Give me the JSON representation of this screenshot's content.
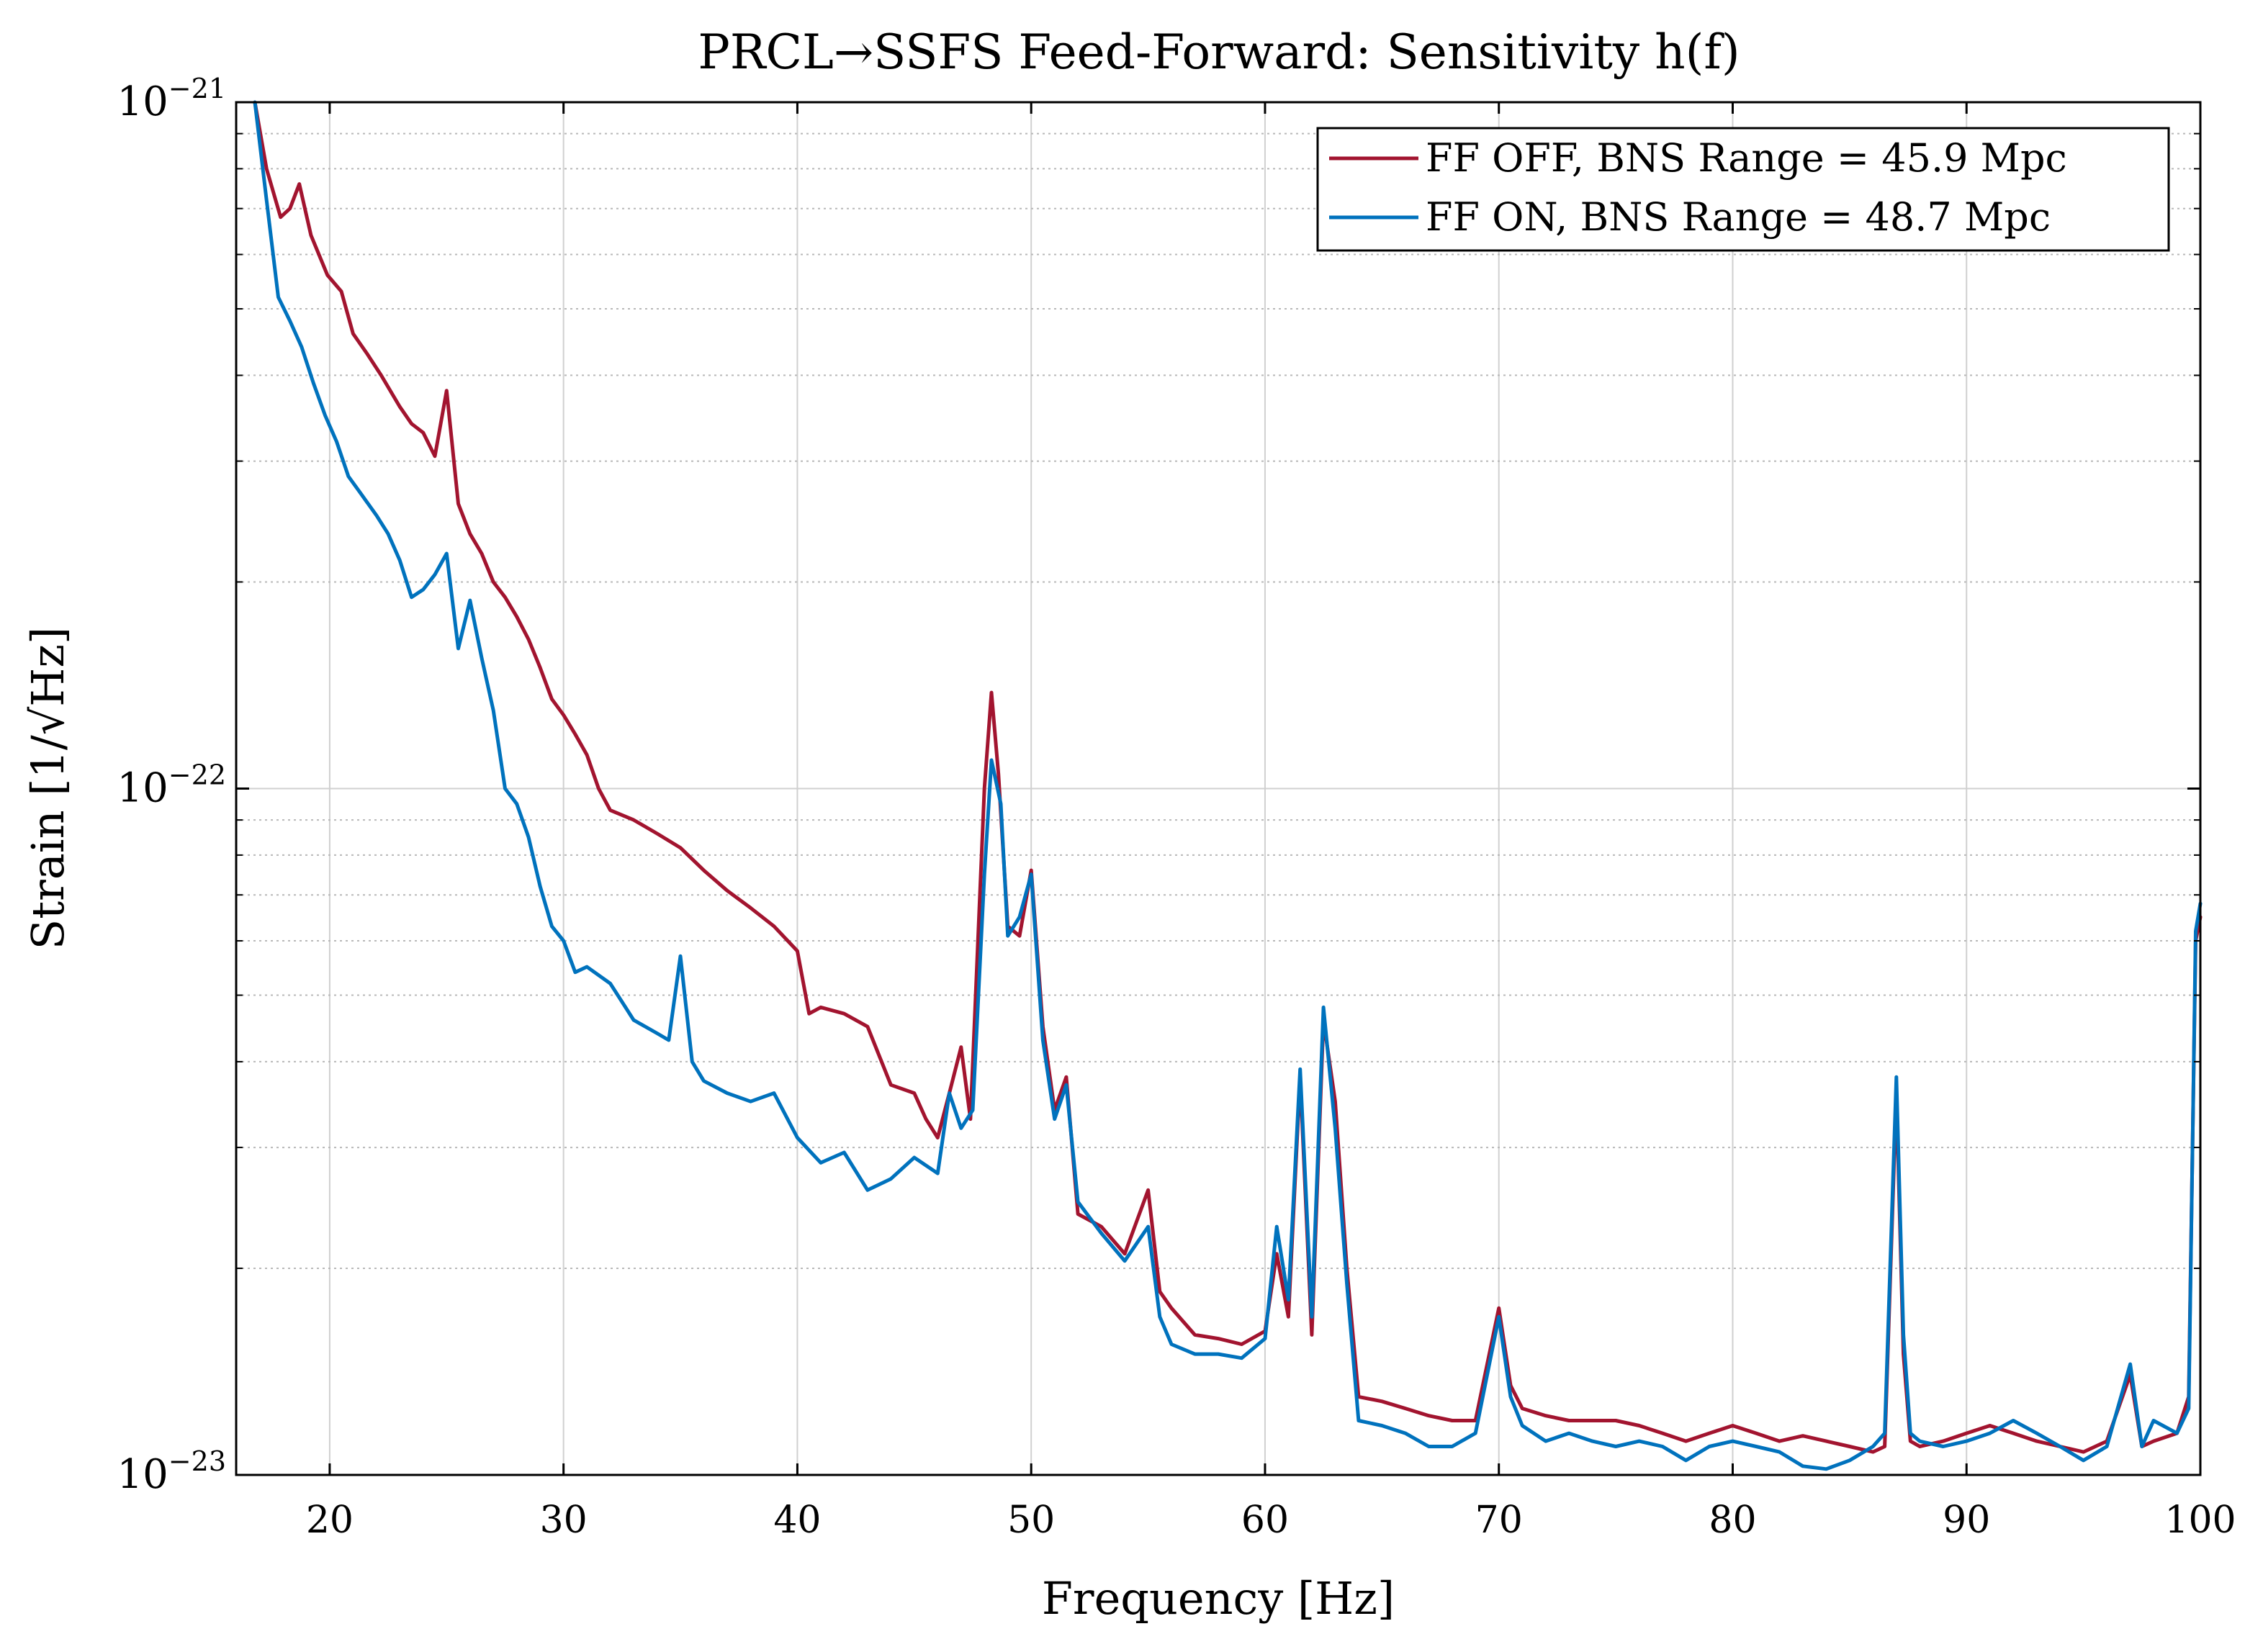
{
  "chart_data": {
    "type": "line",
    "title": "PRCL→SSFS Feed-Forward: Sensitivity h(f)",
    "xlabel": "Frequency [Hz]",
    "ylabel": "Strain [1/√Hz]",
    "xlim": [
      16,
      100
    ],
    "ylim": [
      1e-23,
      1e-21
    ],
    "yscale": "log",
    "grid": true,
    "legend_position": "top-right",
    "x_ticks": [
      20,
      30,
      40,
      50,
      60,
      70,
      80,
      90,
      100
    ],
    "x_tick_labels": [
      "20",
      "30",
      "40",
      "50",
      "60",
      "70",
      "80",
      "90",
      "100"
    ],
    "y_ticks": [
      1e-23,
      1e-22,
      1e-21
    ],
    "y_tick_labels": [
      {
        "base": "10",
        "exp": "−23"
      },
      {
        "base": "10",
        "exp": "−22"
      },
      {
        "base": "10",
        "exp": "−21"
      }
    ],
    "series": [
      {
        "name": "FF OFF, BNS Range = 45.9 Mpc",
        "color": "#a2142f",
        "points": [
          [
            16.8,
            1e-21
          ],
          [
            17.3,
            8e-22
          ],
          [
            17.9,
            6.8e-22
          ],
          [
            18.3,
            7e-22
          ],
          [
            18.7,
            7.6e-22
          ],
          [
            19.2,
            6.4e-22
          ],
          [
            19.9,
            5.6e-22
          ],
          [
            20.5,
            5.3e-22
          ],
          [
            21.0,
            4.6e-22
          ],
          [
            21.6,
            4.3e-22
          ],
          [
            22.2,
            4e-22
          ],
          [
            23.0,
            3.6e-22
          ],
          [
            23.5,
            3.4e-22
          ],
          [
            24.0,
            3.3e-22
          ],
          [
            24.5,
            3.05e-22
          ],
          [
            25.0,
            3.8e-22
          ],
          [
            25.5,
            2.6e-22
          ],
          [
            26.0,
            2.35e-22
          ],
          [
            26.5,
            2.2e-22
          ],
          [
            27.0,
            2e-22
          ],
          [
            27.5,
            1.9e-22
          ],
          [
            28.0,
            1.78e-22
          ],
          [
            28.5,
            1.65e-22
          ],
          [
            29.0,
            1.5e-22
          ],
          [
            29.5,
            1.35e-22
          ],
          [
            30.0,
            1.28e-22
          ],
          [
            30.5,
            1.2e-22
          ],
          [
            31.0,
            1.12e-22
          ],
          [
            31.5,
            1e-22
          ],
          [
            32.0,
            9.3e-23
          ],
          [
            33.0,
            9e-23
          ],
          [
            34.0,
            8.6e-23
          ],
          [
            35.0,
            8.2e-23
          ],
          [
            36.0,
            7.6e-23
          ],
          [
            37.0,
            7.1e-23
          ],
          [
            38.0,
            6.7e-23
          ],
          [
            39.0,
            6.3e-23
          ],
          [
            40.0,
            5.8e-23
          ],
          [
            40.5,
            4.7e-23
          ],
          [
            41.0,
            4.8e-23
          ],
          [
            42.0,
            4.7e-23
          ],
          [
            43.0,
            4.5e-23
          ],
          [
            44.0,
            3.7e-23
          ],
          [
            45.0,
            3.6e-23
          ],
          [
            45.5,
            3.3e-23
          ],
          [
            46.0,
            3.1e-23
          ],
          [
            46.5,
            3.6e-23
          ],
          [
            47.0,
            4.2e-23
          ],
          [
            47.4,
            3.3e-23
          ],
          [
            48.0,
            1e-22
          ],
          [
            48.3,
            1.38e-22
          ],
          [
            48.6,
            1.05e-22
          ],
          [
            49.0,
            6.3e-23
          ],
          [
            49.5,
            6.1e-23
          ],
          [
            50.0,
            7.6e-23
          ],
          [
            50.5,
            4.5e-23
          ],
          [
            51.0,
            3.4e-23
          ],
          [
            51.5,
            3.8e-23
          ],
          [
            52.0,
            2.4e-23
          ],
          [
            53.0,
            2.3e-23
          ],
          [
            54.0,
            2.1e-23
          ],
          [
            55.0,
            2.6e-23
          ],
          [
            55.5,
            1.85e-23
          ],
          [
            56.0,
            1.75e-23
          ],
          [
            57.0,
            1.6e-23
          ],
          [
            58.0,
            1.58e-23
          ],
          [
            59.0,
            1.55e-23
          ],
          [
            60.0,
            1.62e-23
          ],
          [
            60.5,
            2.1e-23
          ],
          [
            61.0,
            1.7e-23
          ],
          [
            61.5,
            3.8e-23
          ],
          [
            62.0,
            1.6e-23
          ],
          [
            62.5,
            4.6e-23
          ],
          [
            63.0,
            3.5e-23
          ],
          [
            63.5,
            2e-23
          ],
          [
            64.0,
            1.3e-23
          ],
          [
            65.0,
            1.28e-23
          ],
          [
            66.0,
            1.25e-23
          ],
          [
            67.0,
            1.22e-23
          ],
          [
            68.0,
            1.2e-23
          ],
          [
            69.0,
            1.2e-23
          ],
          [
            70.0,
            1.75e-23
          ],
          [
            70.5,
            1.35e-23
          ],
          [
            71.0,
            1.25e-23
          ],
          [
            72.0,
            1.22e-23
          ],
          [
            73.0,
            1.2e-23
          ],
          [
            74.0,
            1.2e-23
          ],
          [
            75.0,
            1.2e-23
          ],
          [
            76.0,
            1.18e-23
          ],
          [
            77.0,
            1.15e-23
          ],
          [
            78.0,
            1.12e-23
          ],
          [
            79.0,
            1.15e-23
          ],
          [
            80.0,
            1.18e-23
          ],
          [
            81.0,
            1.15e-23
          ],
          [
            82.0,
            1.12e-23
          ],
          [
            83.0,
            1.14e-23
          ],
          [
            84.0,
            1.12e-23
          ],
          [
            85.0,
            1.1e-23
          ],
          [
            86.0,
            1.08e-23
          ],
          [
            86.5,
            1.1e-23
          ],
          [
            87.0,
            3.6e-23
          ],
          [
            87.3,
            1.5e-23
          ],
          [
            87.6,
            1.12e-23
          ],
          [
            88.0,
            1.1e-23
          ],
          [
            89.0,
            1.12e-23
          ],
          [
            90.0,
            1.15e-23
          ],
          [
            91.0,
            1.18e-23
          ],
          [
            92.0,
            1.15e-23
          ],
          [
            93.0,
            1.12e-23
          ],
          [
            94.0,
            1.1e-23
          ],
          [
            95.0,
            1.08e-23
          ],
          [
            96.0,
            1.12e-23
          ],
          [
            97.0,
            1.4e-23
          ],
          [
            97.5,
            1.1e-23
          ],
          [
            98.0,
            1.12e-23
          ],
          [
            99.0,
            1.15e-23
          ],
          [
            99.5,
            1.3e-23
          ],
          [
            99.8,
            6e-23
          ],
          [
            100.0,
            6.5e-23
          ]
        ]
      },
      {
        "name": "FF ON, BNS Range = 48.7 Mpc",
        "color": "#0072bd",
        "points": [
          [
            16.8,
            1e-21
          ],
          [
            17.3,
            7.2e-22
          ],
          [
            17.8,
            5.2e-22
          ],
          [
            18.3,
            4.8e-22
          ],
          [
            18.8,
            4.4e-22
          ],
          [
            19.3,
            3.9e-22
          ],
          [
            19.8,
            3.5e-22
          ],
          [
            20.3,
            3.2e-22
          ],
          [
            20.8,
            2.85e-22
          ],
          [
            21.3,
            2.7e-22
          ],
          [
            22.0,
            2.5e-22
          ],
          [
            22.5,
            2.35e-22
          ],
          [
            23.0,
            2.15e-22
          ],
          [
            23.5,
            1.9e-22
          ],
          [
            24.0,
            1.95e-22
          ],
          [
            24.5,
            2.05e-22
          ],
          [
            25.0,
            2.2e-22
          ],
          [
            25.5,
            1.6e-22
          ],
          [
            26.0,
            1.88e-22
          ],
          [
            26.5,
            1.55e-22
          ],
          [
            27.0,
            1.3e-22
          ],
          [
            27.5,
            1e-22
          ],
          [
            28.0,
            9.5e-23
          ],
          [
            28.5,
            8.5e-23
          ],
          [
            29.0,
            7.2e-23
          ],
          [
            29.5,
            6.3e-23
          ],
          [
            30.0,
            6e-23
          ],
          [
            30.5,
            5.4e-23
          ],
          [
            31.0,
            5.5e-23
          ],
          [
            32.0,
            5.2e-23
          ],
          [
            33.0,
            4.6e-23
          ],
          [
            34.0,
            4.4e-23
          ],
          [
            34.5,
            4.3e-23
          ],
          [
            35.0,
            5.7e-23
          ],
          [
            35.5,
            4e-23
          ],
          [
            36.0,
            3.75e-23
          ],
          [
            37.0,
            3.6e-23
          ],
          [
            38.0,
            3.5e-23
          ],
          [
            39.0,
            3.6e-23
          ],
          [
            40.0,
            3.1e-23
          ],
          [
            41.0,
            2.85e-23
          ],
          [
            42.0,
            2.95e-23
          ],
          [
            43.0,
            2.6e-23
          ],
          [
            44.0,
            2.7e-23
          ],
          [
            45.0,
            2.9e-23
          ],
          [
            46.0,
            2.75e-23
          ],
          [
            46.5,
            3.6e-23
          ],
          [
            47.0,
            3.2e-23
          ],
          [
            47.5,
            3.4e-23
          ],
          [
            48.0,
            7.5e-23
          ],
          [
            48.3,
            1.1e-22
          ],
          [
            48.7,
            9.5e-23
          ],
          [
            49.0,
            6.1e-23
          ],
          [
            49.5,
            6.5e-23
          ],
          [
            50.0,
            7.5e-23
          ],
          [
            50.5,
            4.3e-23
          ],
          [
            51.0,
            3.3e-23
          ],
          [
            51.5,
            3.7e-23
          ],
          [
            52.0,
            2.5e-23
          ],
          [
            53.0,
            2.25e-23
          ],
          [
            54.0,
            2.05e-23
          ],
          [
            55.0,
            2.3e-23
          ],
          [
            55.5,
            1.7e-23
          ],
          [
            56.0,
            1.55e-23
          ],
          [
            57.0,
            1.5e-23
          ],
          [
            58.0,
            1.5e-23
          ],
          [
            59.0,
            1.48e-23
          ],
          [
            60.0,
            1.58e-23
          ],
          [
            60.5,
            2.3e-23
          ],
          [
            61.0,
            1.8e-23
          ],
          [
            61.5,
            3.9e-23
          ],
          [
            62.0,
            1.7e-23
          ],
          [
            62.5,
            4.8e-23
          ],
          [
            63.0,
            3.2e-23
          ],
          [
            63.5,
            1.9e-23
          ],
          [
            64.0,
            1.2e-23
          ],
          [
            65.0,
            1.18e-23
          ],
          [
            66.0,
            1.15e-23
          ],
          [
            67.0,
            1.1e-23
          ],
          [
            68.0,
            1.1e-23
          ],
          [
            69.0,
            1.15e-23
          ],
          [
            70.0,
            1.7e-23
          ],
          [
            70.5,
            1.3e-23
          ],
          [
            71.0,
            1.18e-23
          ],
          [
            72.0,
            1.12e-23
          ],
          [
            73.0,
            1.15e-23
          ],
          [
            74.0,
            1.12e-23
          ],
          [
            75.0,
            1.1e-23
          ],
          [
            76.0,
            1.12e-23
          ],
          [
            77.0,
            1.1e-23
          ],
          [
            78.0,
            1.05e-23
          ],
          [
            79.0,
            1.1e-23
          ],
          [
            80.0,
            1.12e-23
          ],
          [
            81.0,
            1.1e-23
          ],
          [
            82.0,
            1.08e-23
          ],
          [
            83.0,
            1.03e-23
          ],
          [
            84.0,
            1.02e-23
          ],
          [
            85.0,
            1.05e-23
          ],
          [
            86.0,
            1.1e-23
          ],
          [
            86.5,
            1.15e-23
          ],
          [
            87.0,
            3.8e-23
          ],
          [
            87.3,
            1.6e-23
          ],
          [
            87.6,
            1.15e-23
          ],
          [
            88.0,
            1.12e-23
          ],
          [
            89.0,
            1.1e-23
          ],
          [
            90.0,
            1.12e-23
          ],
          [
            91.0,
            1.15e-23
          ],
          [
            92.0,
            1.2e-23
          ],
          [
            93.0,
            1.15e-23
          ],
          [
            94.0,
            1.1e-23
          ],
          [
            95.0,
            1.05e-23
          ],
          [
            96.0,
            1.1e-23
          ],
          [
            97.0,
            1.45e-23
          ],
          [
            97.5,
            1.1e-23
          ],
          [
            98.0,
            1.2e-23
          ],
          [
            99.0,
            1.15e-23
          ],
          [
            99.5,
            1.25e-23
          ],
          [
            99.8,
            6.2e-23
          ],
          [
            100.0,
            6.8e-23
          ]
        ]
      }
    ]
  }
}
